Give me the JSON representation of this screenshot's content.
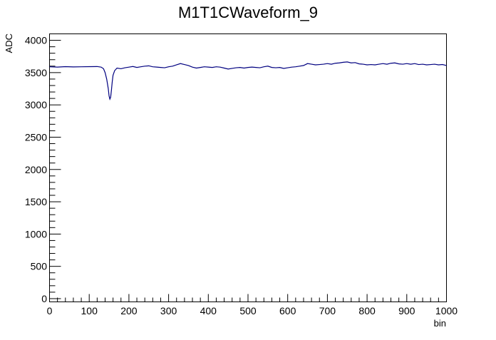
{
  "chart_data": {
    "type": "line",
    "title": "M1T1CWaveform_9",
    "xlabel": "bin",
    "ylabel": "ADC",
    "xlim": [
      0,
      1000
    ],
    "ylim": [
      -50,
      4100
    ],
    "x_ticks": [
      "0",
      "100",
      "200",
      "300",
      "400",
      "500",
      "600",
      "700",
      "800",
      "900",
      "1000"
    ],
    "y_ticks": [
      "0",
      "500",
      "1000",
      "1500",
      "2000",
      "2500",
      "3000",
      "3500",
      "4000"
    ],
    "grid": false,
    "line_color": "#000080",
    "series": [
      {
        "x": [
          0,
          20,
          40,
          60,
          80,
          100,
          120,
          130,
          136,
          140,
          144,
          148,
          150,
          152,
          154,
          156,
          158,
          160,
          164,
          170,
          180,
          190,
          200,
          210,
          220,
          230,
          240,
          250,
          260,
          270,
          280,
          290,
          300,
          310,
          320,
          330,
          340,
          350,
          360,
          370,
          380,
          390,
          400,
          410,
          420,
          430,
          440,
          450,
          460,
          470,
          480,
          490,
          500,
          510,
          520,
          530,
          540,
          550,
          560,
          570,
          580,
          590,
          600,
          610,
          620,
          630,
          640,
          650,
          660,
          670,
          680,
          690,
          700,
          710,
          720,
          730,
          740,
          750,
          760,
          770,
          780,
          790,
          800,
          810,
          820,
          830,
          840,
          850,
          860,
          870,
          880,
          890,
          900,
          910,
          920,
          930,
          940,
          950,
          960,
          970,
          980,
          990,
          1000
        ],
        "y": [
          3590,
          3585,
          3592,
          3588,
          3590,
          3592,
          3594,
          3585,
          3560,
          3500,
          3400,
          3250,
          3140,
          3090,
          3120,
          3230,
          3360,
          3460,
          3530,
          3570,
          3560,
          3575,
          3585,
          3595,
          3580,
          3590,
          3600,
          3605,
          3590,
          3585,
          3580,
          3575,
          3590,
          3600,
          3620,
          3640,
          3625,
          3610,
          3585,
          3570,
          3580,
          3590,
          3585,
          3580,
          3590,
          3585,
          3570,
          3555,
          3565,
          3575,
          3580,
          3570,
          3580,
          3585,
          3580,
          3575,
          3590,
          3600,
          3580,
          3575,
          3580,
          3565,
          3575,
          3585,
          3590,
          3600,
          3610,
          3640,
          3630,
          3620,
          3625,
          3630,
          3640,
          3630,
          3645,
          3650,
          3660,
          3665,
          3650,
          3655,
          3635,
          3630,
          3620,
          3625,
          3620,
          3630,
          3640,
          3630,
          3645,
          3650,
          3635,
          3630,
          3640,
          3630,
          3640,
          3625,
          3630,
          3620,
          3625,
          3630,
          3620,
          3625,
          3610
        ]
      }
    ]
  }
}
